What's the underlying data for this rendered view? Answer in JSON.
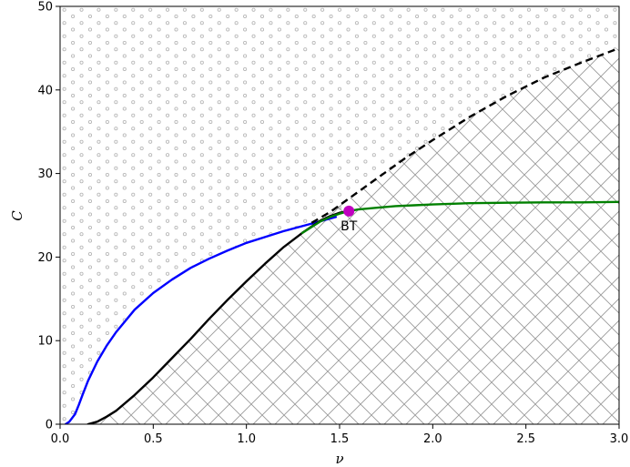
{
  "chart_data": {
    "type": "line",
    "title": "",
    "xlabel": "ν",
    "ylabel": "C",
    "xlim": [
      0,
      3.0
    ],
    "ylim": [
      0,
      50
    ],
    "xticks": [
      0.0,
      0.5,
      1.0,
      1.5,
      2.0,
      2.5,
      3.0
    ],
    "xtick_labels": [
      "0.0",
      "0.5",
      "1.0",
      "1.5",
      "2.0",
      "2.5",
      "3.0"
    ],
    "yticks": [
      0,
      10,
      20,
      30,
      40,
      50
    ],
    "ytick_labels": [
      "0",
      "10",
      "20",
      "30",
      "40",
      "50"
    ],
    "grid": false,
    "legend": "none",
    "regions": [
      {
        "pattern": "circles",
        "color": "#aaaaaa",
        "bounded_by": "blue curve and dashed black curve (above)"
      },
      {
        "pattern": "crosshatch",
        "color": "#999999",
        "bounded_by": "black curves (below)"
      }
    ],
    "series": [
      {
        "color": "#0000ff",
        "style": "solid",
        "x": [
          0.03,
          0.05,
          0.08,
          0.1,
          0.12,
          0.15,
          0.2,
          0.25,
          0.3,
          0.4,
          0.5,
          0.6,
          0.7,
          0.8,
          0.9,
          1.0,
          1.1,
          1.2,
          1.3,
          1.4,
          1.48
        ],
        "values": [
          0.0,
          0.3,
          1.2,
          2.3,
          3.5,
          5.2,
          7.5,
          9.4,
          11.0,
          13.7,
          15.7,
          17.3,
          18.7,
          19.8,
          20.8,
          21.7,
          22.4,
          23.1,
          23.7,
          24.3,
          24.8
        ]
      },
      {
        "color": "#000000",
        "style": "solid",
        "x": [
          0.15,
          0.2,
          0.25,
          0.3,
          0.4,
          0.5,
          0.6,
          0.7,
          0.8,
          0.9,
          1.0,
          1.1,
          1.2,
          1.3,
          1.4,
          1.45,
          1.5,
          1.55
        ],
        "values": [
          0.0,
          0.3,
          0.9,
          1.6,
          3.5,
          5.6,
          7.9,
          10.2,
          12.6,
          14.9,
          17.1,
          19.2,
          21.2,
          22.9,
          24.4,
          24.9,
          25.3,
          25.5
        ]
      },
      {
        "color": "#000000",
        "style": "dashed",
        "x": [
          1.35,
          1.45,
          1.55,
          1.7,
          1.85,
          2.0,
          2.2,
          2.4,
          2.6,
          2.8,
          3.0
        ],
        "values": [
          24.1,
          25.4,
          27.0,
          29.4,
          31.8,
          34.0,
          36.8,
          39.3,
          41.5,
          43.3,
          45.0
        ]
      },
      {
        "color": "#008000",
        "style": "solid",
        "x": [
          1.3,
          1.35,
          1.4,
          1.45,
          1.5,
          1.55,
          1.6,
          1.7,
          1.8,
          1.9,
          2.0,
          2.2,
          2.4,
          2.6,
          2.8,
          3.0
        ],
        "values": [
          22.9,
          23.6,
          24.3,
          24.8,
          25.2,
          25.5,
          25.7,
          25.9,
          26.1,
          26.2,
          26.3,
          26.45,
          26.5,
          26.55,
          26.55,
          26.6
        ]
      }
    ],
    "points": [
      {
        "x": 1.55,
        "y": 25.5,
        "color": "#c000c0",
        "label": "BT"
      }
    ]
  }
}
